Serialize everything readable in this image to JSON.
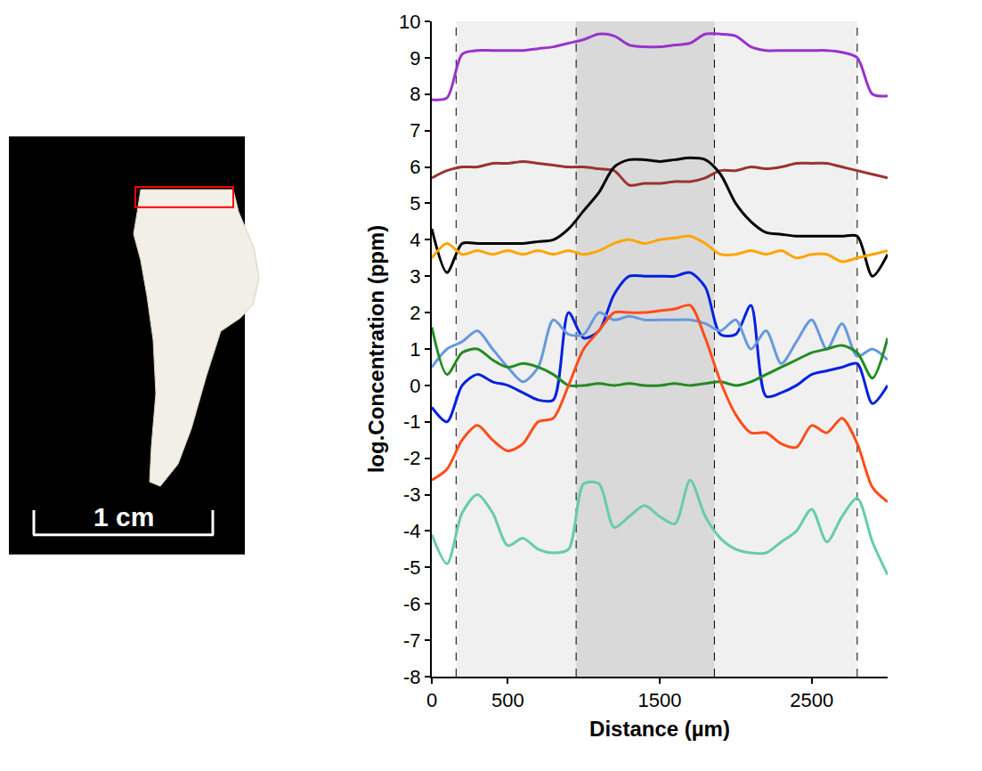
{
  "chart_data": {
    "type": "line",
    "x_label": "Distance (µm)",
    "y_label": "log.Concentration (ppm)",
    "xlim": [
      0,
      3000
    ],
    "ylim": [
      -8,
      10
    ],
    "xticks": [
      0,
      500,
      1500,
      2500
    ],
    "yticks": [
      -8,
      -7,
      -6,
      -5,
      -4,
      -3,
      -2,
      -1,
      0,
      1,
      2,
      3,
      4,
      5,
      6,
      7,
      8,
      9,
      10
    ],
    "grid": false,
    "regions": [
      {
        "x0": 160,
        "x1": 2800,
        "color": "#f0f0f0"
      },
      {
        "x0": 950,
        "x1": 1860,
        "color": "#d9d9d9"
      }
    ],
    "x": [
      0,
      100,
      200,
      300,
      400,
      500,
      600,
      700,
      800,
      900,
      1000,
      1100,
      1200,
      1300,
      1400,
      1500,
      1600,
      1700,
      1800,
      1900,
      2000,
      2100,
      2200,
      2300,
      2400,
      2500,
      2600,
      2700,
      2800,
      2900,
      3000
    ],
    "series": [
      {
        "color": "#9933cc",
        "values": [
          7.85,
          7.9,
          9.1,
          9.2,
          9.2,
          9.2,
          9.2,
          9.25,
          9.3,
          9.4,
          9.5,
          9.65,
          9.6,
          9.35,
          9.3,
          9.3,
          9.35,
          9.4,
          9.65,
          9.65,
          9.6,
          9.3,
          9.2,
          9.2,
          9.2,
          9.2,
          9.2,
          9.15,
          9.0,
          8.0,
          7.95
        ]
      },
      {
        "color": "#993333",
        "values": [
          5.7,
          5.9,
          6.0,
          6.0,
          6.1,
          6.1,
          6.15,
          6.1,
          6.05,
          6.0,
          6.0,
          5.95,
          5.9,
          5.5,
          5.55,
          5.55,
          5.6,
          5.6,
          5.7,
          5.9,
          5.9,
          6.0,
          5.95,
          6.0,
          6.1,
          6.1,
          6.1,
          6.0,
          5.9,
          5.8,
          5.7
        ]
      },
      {
        "color": "#000000",
        "values": [
          4.3,
          3.1,
          3.9,
          3.9,
          3.9,
          3.9,
          3.9,
          3.95,
          4.0,
          4.3,
          4.8,
          5.3,
          6.0,
          6.2,
          6.2,
          6.15,
          6.2,
          6.25,
          6.2,
          5.8,
          5.0,
          4.5,
          4.2,
          4.15,
          4.1,
          4.1,
          4.1,
          4.1,
          4.1,
          3.0,
          3.6
        ]
      },
      {
        "color": "#ffa500",
        "values": [
          3.5,
          3.9,
          3.6,
          3.7,
          3.6,
          3.7,
          3.6,
          3.7,
          3.6,
          3.7,
          3.6,
          3.7,
          3.9,
          4.0,
          3.9,
          4.0,
          4.05,
          4.1,
          3.9,
          3.6,
          3.6,
          3.7,
          3.6,
          3.7,
          3.5,
          3.6,
          3.6,
          3.4,
          3.5,
          3.6,
          3.7
        ]
      },
      {
        "color": "#0022dd",
        "values": [
          -0.6,
          -1.0,
          0.0,
          0.3,
          0.1,
          0.0,
          -0.2,
          -0.4,
          -0.4,
          2.0,
          1.3,
          1.5,
          2.5,
          3.0,
          3.0,
          3.0,
          3.0,
          3.1,
          2.7,
          1.4,
          1.4,
          2.2,
          -0.3,
          -0.2,
          0.0,
          0.3,
          0.4,
          0.5,
          0.6,
          -0.5,
          0.0
        ]
      },
      {
        "color": "#6699dd",
        "values": [
          0.5,
          1.0,
          1.2,
          1.5,
          1.0,
          0.5,
          0.1,
          0.5,
          1.8,
          1.4,
          1.4,
          2.0,
          1.8,
          1.9,
          1.8,
          1.8,
          1.8,
          1.8,
          1.7,
          1.5,
          1.8,
          1.0,
          1.5,
          0.6,
          1.2,
          1.8,
          1.0,
          1.7,
          0.8,
          1.0,
          0.7
        ]
      },
      {
        "color": "#228b22",
        "values": [
          1.6,
          0.3,
          0.9,
          1.0,
          0.7,
          0.5,
          0.6,
          0.5,
          0.3,
          0.0,
          0.0,
          0.05,
          0.0,
          0.05,
          0.0,
          0.0,
          0.05,
          0.0,
          0.05,
          0.1,
          0.0,
          0.1,
          0.3,
          0.5,
          0.7,
          0.9,
          1.0,
          1.1,
          0.9,
          0.2,
          1.3
        ]
      },
      {
        "color": "#ff4d1a",
        "values": [
          -2.6,
          -2.3,
          -1.5,
          -1.1,
          -1.5,
          -1.8,
          -1.6,
          -1.0,
          -0.9,
          0.0,
          1.0,
          1.5,
          2.0,
          2.0,
          2.0,
          2.05,
          2.1,
          2.2,
          1.3,
          0.1,
          -0.8,
          -1.3,
          -1.3,
          -1.6,
          -1.7,
          -1.1,
          -1.3,
          -0.9,
          -1.6,
          -2.8,
          -3.2
        ]
      },
      {
        "color": "#66ccaa",
        "values": [
          -4.1,
          -4.9,
          -3.5,
          -3.0,
          -3.5,
          -4.4,
          -4.2,
          -4.5,
          -4.6,
          -4.5,
          -2.7,
          -2.7,
          -3.9,
          -3.6,
          -3.3,
          -3.6,
          -3.8,
          -2.6,
          -3.6,
          -4.2,
          -4.5,
          -4.6,
          -4.6,
          -4.3,
          -4.0,
          -3.4,
          -4.3,
          -3.6,
          -3.1,
          -4.3,
          -5.2
        ]
      }
    ]
  },
  "image": {
    "scale_label": "1 cm"
  }
}
